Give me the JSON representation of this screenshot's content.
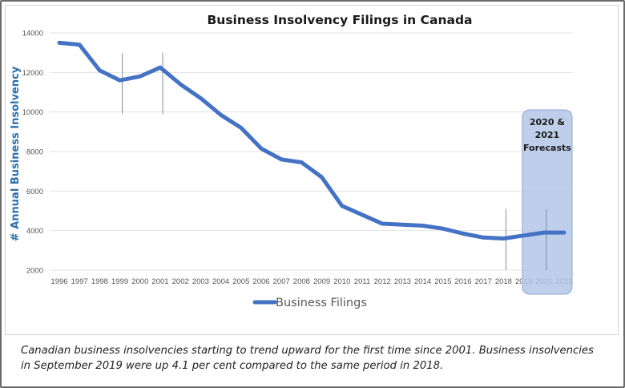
{
  "chart_data": {
    "type": "line",
    "title": "Business Insolvency Filings in Canada",
    "ylabel": "# Annual Business Insolvency",
    "ylim": [
      2000,
      14000
    ],
    "yticks": [
      2000,
      4000,
      6000,
      8000,
      10000,
      12000,
      14000
    ],
    "xticks": [
      "1996",
      "1997",
      "1998",
      "1999",
      "2000",
      "2001",
      "2002",
      "2003",
      "2004",
      "2005",
      "2006",
      "2007",
      "2008",
      "2009",
      "2010",
      "2011",
      "2012",
      "2013",
      "2014",
      "2015",
      "2016",
      "2017",
      "2018",
      "2019",
      "2020",
      "2021"
    ],
    "grid": true,
    "legend_position": "bottom",
    "series": [
      {
        "name": "Business Filings",
        "color": "#4472c4",
        "x": [
          "1996",
          "1997",
          "1998",
          "1999",
          "2000",
          "2001",
          "2002",
          "2003",
          "2004",
          "2005",
          "2006",
          "2007",
          "2008",
          "2009",
          "2010",
          "2011",
          "2012",
          "2013",
          "2014",
          "2015",
          "2016",
          "2017",
          "2018",
          "2019",
          "2020",
          "2021"
        ],
        "values": [
          13500,
          13400,
          12100,
          11600,
          11800,
          12250,
          11400,
          10700,
          9850,
          9200,
          8150,
          7600,
          7450,
          6700,
          5250,
          4800,
          4350,
          4300,
          4250,
          4100,
          3850,
          3650,
          3600,
          3750,
          3900,
          3900
        ]
      }
    ],
    "marker_lines": [
      {
        "x": "1999",
        "y_range": [
          9900,
          13000
        ]
      },
      {
        "x": "2001",
        "y_range": [
          9900,
          13000
        ]
      },
      {
        "x": "2018",
        "y_range": [
          2000,
          5100
        ]
      },
      {
        "x": "2020",
        "y_range": [
          2000,
          5100
        ]
      }
    ],
    "forecast_box": {
      "x_range": [
        "2020",
        "2021"
      ],
      "label_lines": [
        "2020 &",
        "2021",
        "Forecasts"
      ],
      "fill": "#b4c7e7",
      "stroke": "#8eaadb"
    }
  },
  "caption": "Canadian business insolvencies starting to trend upward for the first time since 2001. Business insolvencies in September 2019 were up 4.1 per cent compared to the same period in 2018."
}
